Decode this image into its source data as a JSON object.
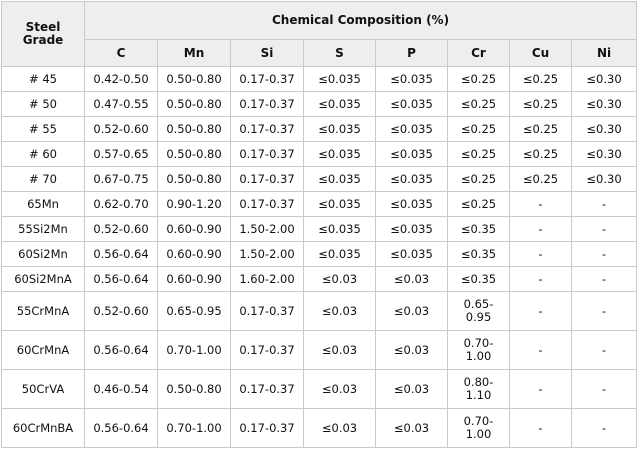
{
  "table": {
    "grade_header_line1": "Steel",
    "grade_header_line2": "Grade",
    "composition_header": "Chemical Composition (%)",
    "elements": [
      "C",
      "Mn",
      "Si",
      "S",
      "P",
      "Cr",
      "Cu",
      "Ni"
    ],
    "rows": [
      {
        "grade": "# 45",
        "C": "0.42-0.50",
        "Mn": "0.50-0.80",
        "Si": "0.17-0.37",
        "S": "≤0.035",
        "P": "≤0.035",
        "Cr": [
          "≤0.25"
        ],
        "Cu": "≤0.25",
        "Ni": "≤0.30"
      },
      {
        "grade": "# 50",
        "C": "0.47-0.55",
        "Mn": "0.50-0.80",
        "Si": "0.17-0.37",
        "S": "≤0.035",
        "P": "≤0.035",
        "Cr": [
          "≤0.25"
        ],
        "Cu": "≤0.25",
        "Ni": "≤0.30"
      },
      {
        "grade": "# 55",
        "C": "0.52-0.60",
        "Mn": "0.50-0.80",
        "Si": "0.17-0.37",
        "S": "≤0.035",
        "P": "≤0.035",
        "Cr": [
          "≤0.25"
        ],
        "Cu": "≤0.25",
        "Ni": "≤0.30"
      },
      {
        "grade": "# 60",
        "C": "0.57-0.65",
        "Mn": "0.50-0.80",
        "Si": "0.17-0.37",
        "S": "≤0.035",
        "P": "≤0.035",
        "Cr": [
          "≤0.25"
        ],
        "Cu": "≤0.25",
        "Ni": "≤0.30"
      },
      {
        "grade": "# 70",
        "C": "0.67-0.75",
        "Mn": "0.50-0.80",
        "Si": "0.17-0.37",
        "S": "≤0.035",
        "P": "≤0.035",
        "Cr": [
          "≤0.25"
        ],
        "Cu": "≤0.25",
        "Ni": "≤0.30"
      },
      {
        "grade": "65Mn",
        "C": "0.62-0.70",
        "Mn": "0.90-1.20",
        "Si": "0.17-0.37",
        "S": "≤0.035",
        "P": "≤0.035",
        "Cr": [
          "≤0.25"
        ],
        "Cu": "-",
        "Ni": "-"
      },
      {
        "grade": "55Si2Mn",
        "C": "0.52-0.60",
        "Mn": "0.60-0.90",
        "Si": "1.50-2.00",
        "S": "≤0.035",
        "P": "≤0.035",
        "Cr": [
          "≤0.35"
        ],
        "Cu": "-",
        "Ni": "-"
      },
      {
        "grade": "60Si2Mn",
        "C": "0.56-0.64",
        "Mn": "0.60-0.90",
        "Si": "1.50-2.00",
        "S": "≤0.035",
        "P": "≤0.035",
        "Cr": [
          "≤0.35"
        ],
        "Cu": "-",
        "Ni": "-"
      },
      {
        "grade": "60Si2MnA",
        "C": "0.56-0.64",
        "Mn": "0.60-0.90",
        "Si": "1.60-2.00",
        "S": "≤0.03",
        "P": "≤0.03",
        "Cr": [
          "≤0.35"
        ],
        "Cu": "-",
        "Ni": "-"
      },
      {
        "grade": "55CrMnA",
        "C": "0.52-0.60",
        "Mn": "0.65-0.95",
        "Si": "0.17-0.37",
        "S": "≤0.03",
        "P": "≤0.03",
        "Cr": [
          "0.65-",
          "0.95"
        ],
        "Cu": "-",
        "Ni": "-"
      },
      {
        "grade": "60CrMnA",
        "C": "0.56-0.64",
        "Mn": "0.70-1.00",
        "Si": "0.17-0.37",
        "S": "≤0.03",
        "P": "≤0.03",
        "Cr": [
          "0.70-",
          "1.00"
        ],
        "Cu": "-",
        "Ni": "-"
      },
      {
        "grade": "50CrVA",
        "C": "0.46-0.54",
        "Mn": "0.50-0.80",
        "Si": "0.17-0.37",
        "S": "≤0.03",
        "P": "≤0.03",
        "Cr": [
          "0.80-",
          "1.10"
        ],
        "Cu": "-",
        "Ni": "-"
      },
      {
        "grade": "60CrMnBA",
        "C": "0.56-0.64",
        "Mn": "0.70-1.00",
        "Si": "0.17-0.37",
        "S": "≤0.03",
        "P": "≤0.03",
        "Cr": [
          "0.70-",
          "1.00"
        ],
        "Cu": "-",
        "Ni": "-"
      }
    ]
  }
}
